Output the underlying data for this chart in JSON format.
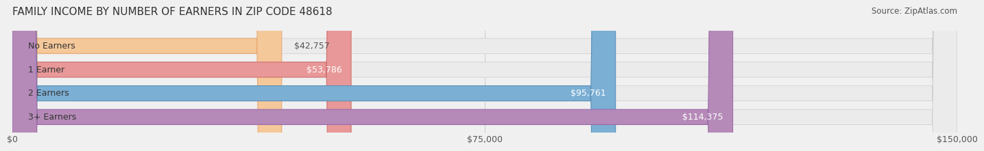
{
  "title": "FAMILY INCOME BY NUMBER OF EARNERS IN ZIP CODE 48618",
  "source": "Source: ZipAtlas.com",
  "categories": [
    "No Earners",
    "1 Earner",
    "2 Earners",
    "3+ Earners"
  ],
  "values": [
    42757,
    53786,
    95761,
    114375
  ],
  "labels": [
    "$42,757",
    "$53,786",
    "$95,761",
    "$114,375"
  ],
  "bar_colors": [
    "#f5c89a",
    "#e89898",
    "#7bafd4",
    "#b58ab8"
  ],
  "bar_edge_colors": [
    "#e8a870",
    "#d07070",
    "#5a90b8",
    "#9a6aa8"
  ],
  "background_color": "#f0f0f0",
  "bar_bg_color": "#e8e8e8",
  "xlim": [
    0,
    150000
  ],
  "xticks": [
    0,
    75000,
    150000
  ],
  "xtick_labels": [
    "$0",
    "$75,000",
    "$150,000"
  ],
  "title_fontsize": 11,
  "source_fontsize": 8.5,
  "label_fontsize": 9,
  "cat_fontsize": 9,
  "tick_fontsize": 9,
  "bar_height": 0.62,
  "label_color_dark": "#555555",
  "label_color_light": "#ffffff"
}
